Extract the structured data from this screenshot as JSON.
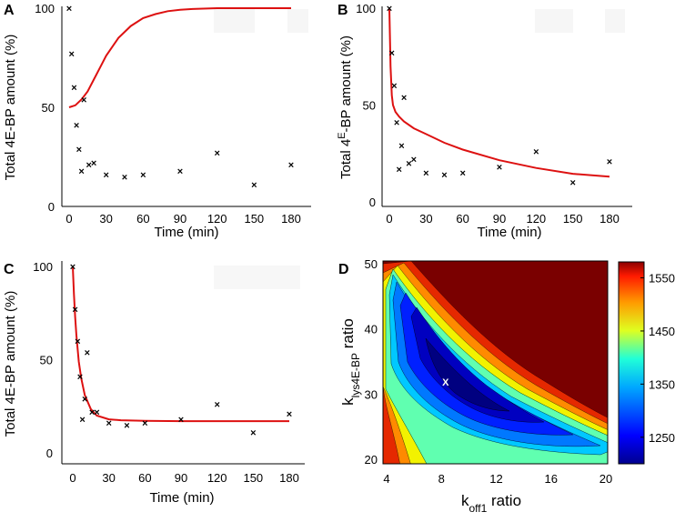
{
  "chart_data": [
    {
      "panel": "A",
      "type": "scatter",
      "xlabel": "Time (min)",
      "ylabel": "Total  4E-BP amount (%)",
      "xlim": [
        0,
        180
      ],
      "ylim": [
        0,
        100
      ],
      "xticks": [
        0,
        30,
        60,
        90,
        120,
        150,
        180
      ],
      "yticks": [
        0,
        50,
        100
      ],
      "points": {
        "x": [
          0,
          2,
          4,
          6,
          8,
          10,
          12,
          16,
          20,
          30,
          45,
          60,
          90,
          120,
          150,
          180
        ],
        "y": [
          100,
          77,
          60,
          41,
          29,
          18,
          54,
          21,
          22,
          16,
          15,
          16,
          18,
          27,
          11,
          21
        ]
      },
      "fit": {
        "color": "#dd1111",
        "x": [
          0,
          5,
          10,
          15,
          20,
          25,
          30,
          40,
          50,
          60,
          70,
          80,
          90,
          100,
          120,
          150,
          180
        ],
        "y": [
          50,
          51,
          54,
          58,
          64,
          70,
          76,
          85,
          91,
          95,
          97,
          98.5,
          99.2,
          99.6,
          100,
          100,
          100
        ]
      }
    },
    {
      "panel": "B",
      "type": "scatter",
      "xlabel": "Time (min)",
      "ylabel": "Total  4E-BP amount (%)",
      "ylabel_sup": "E",
      "xlim": [
        0,
        180
      ],
      "ylim": [
        0,
        100
      ],
      "xticks": [
        0,
        30,
        60,
        90,
        120,
        150,
        180
      ],
      "yticks": [
        0,
        50,
        100
      ],
      "points": {
        "x": [
          0,
          2,
          4,
          6,
          8,
          10,
          12,
          16,
          20,
          30,
          45,
          60,
          90,
          120,
          150,
          180
        ],
        "y": [
          100,
          77,
          60,
          41,
          17,
          29,
          54,
          20,
          22,
          15,
          14,
          15,
          18,
          26,
          10,
          21
        ]
      },
      "fit": {
        "color": "#dd1111",
        "x": [
          0,
          1,
          2,
          3,
          5,
          8,
          12,
          20,
          30,
          45,
          60,
          90,
          120,
          150,
          180
        ],
        "y": [
          100,
          70,
          55,
          50,
          46.5,
          44,
          41.5,
          38,
          35,
          30.5,
          27,
          21.5,
          17.5,
          14.5,
          13
        ]
      }
    },
    {
      "panel": "C",
      "type": "scatter",
      "xlabel": "Time (min)",
      "ylabel": "Total  4E-BP amount (%)",
      "xlim": [
        0,
        180
      ],
      "ylim": [
        0,
        100
      ],
      "xticks": [
        0,
        30,
        60,
        90,
        120,
        150,
        180
      ],
      "yticks": [
        0,
        50,
        100
      ],
      "points": {
        "x": [
          0,
          2,
          4,
          6,
          8,
          10,
          12,
          16,
          20,
          30,
          45,
          60,
          90,
          120,
          150,
          180
        ],
        "y": [
          100,
          77,
          60,
          41,
          18,
          29,
          54,
          22,
          22,
          16,
          15,
          16,
          18,
          26,
          11,
          21
        ]
      },
      "fit": {
        "color": "#dd1111",
        "x": [
          0,
          1,
          2,
          3,
          5,
          7,
          10,
          15,
          20,
          30,
          40,
          60,
          90,
          120,
          150,
          180
        ],
        "y": [
          100,
          85,
          73,
          63,
          49,
          40,
          31,
          23.5,
          20,
          18,
          17.5,
          17.2,
          17,
          17,
          17,
          17
        ]
      }
    },
    {
      "panel": "D",
      "type": "heatmap",
      "xlabel": "k",
      "xlabel_sub": "off1",
      "xlabel_tail": " ratio",
      "ylabel": "k",
      "ylabel_sub": "lys4E-BP",
      "ylabel_tail": " ratio",
      "xlim": [
        4,
        20
      ],
      "ylim": [
        20,
        50
      ],
      "xticks": [
        4,
        8,
        12,
        16,
        20
      ],
      "yticks": [
        20,
        30,
        40,
        50
      ],
      "colorbar_ticks": [
        1250,
        1350,
        1450,
        1550
      ],
      "colorbar_range": [
        1200,
        1580
      ],
      "minimum_marker": {
        "label": "X",
        "x": 8.3,
        "y": 32
      }
    }
  ]
}
